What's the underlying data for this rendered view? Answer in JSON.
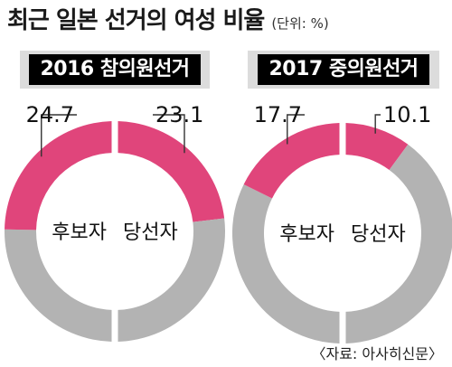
{
  "header": {
    "title": "최근 일본 선거의 여성 비율",
    "unit": "(단위: %)"
  },
  "footer": {
    "source": "〈자료: 아사히신문〉"
  },
  "colors": {
    "female": "#e0457b",
    "rest": "#b3b3b3"
  },
  "chart_data": [
    {
      "type": "pie",
      "title": "2016 참의원선거",
      "slices": [
        {
          "label": "후보자",
          "value": 24.7
        },
        {
          "label": "당선자",
          "value": 23.1
        }
      ]
    },
    {
      "type": "pie",
      "title": "2017 중의원선거",
      "slices": [
        {
          "label": "후보자",
          "value": 17.7
        },
        {
          "label": "당선자",
          "value": 10.1
        }
      ]
    }
  ]
}
